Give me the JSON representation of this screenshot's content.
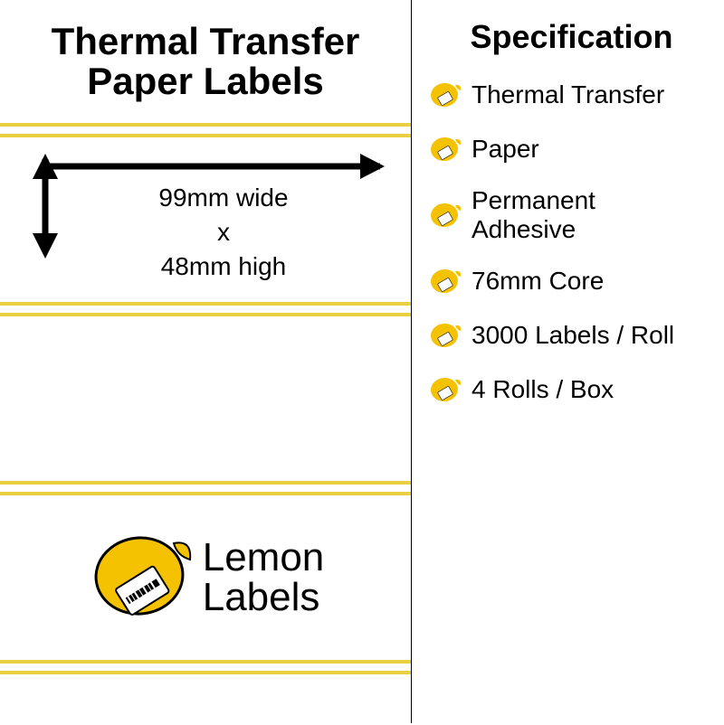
{
  "title": "Thermal Transfer\nPaper Labels",
  "dimensions": {
    "width_label": "99mm wide",
    "separator": "x",
    "height_label": "48mm high"
  },
  "logo": {
    "line1": "Lemon",
    "line2": "Labels"
  },
  "specification": {
    "header": "Specification",
    "items": [
      "Thermal Transfer",
      "Paper",
      "Permanent\nAdhesive",
      "76mm Core",
      "3000 Labels / Roll",
      "4 Rolls / Box"
    ]
  },
  "colors": {
    "yellow": "#f4c200",
    "yellow_border": "#e8d040",
    "black": "#000000",
    "white": "#ffffff"
  }
}
